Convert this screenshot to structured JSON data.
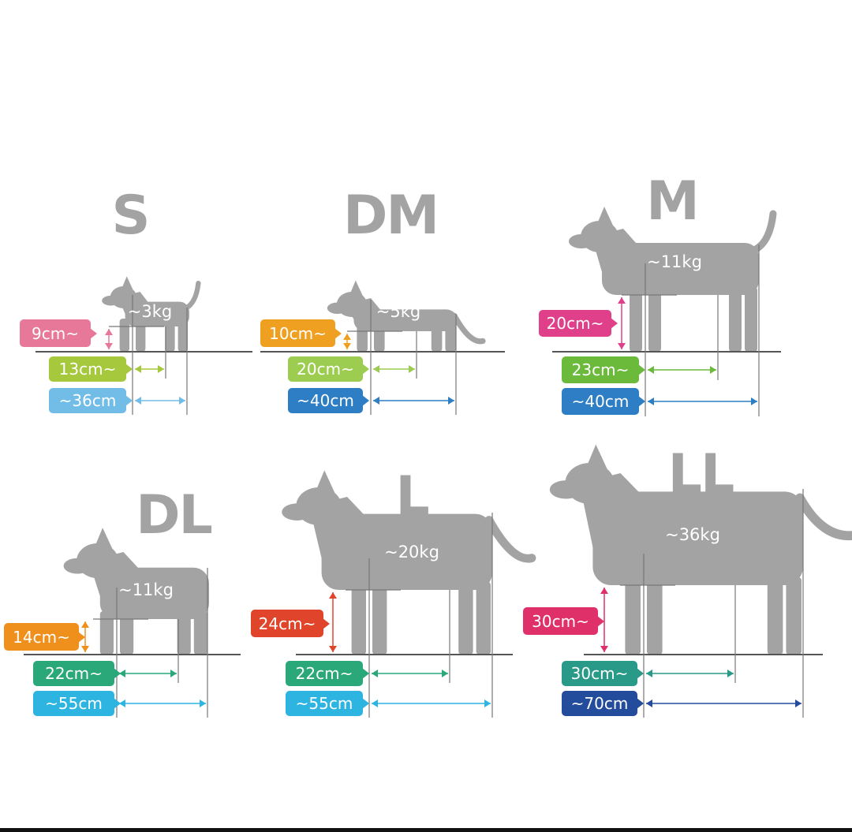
{
  "panels": [
    {
      "size": "S",
      "weight": "~3kg",
      "height": "9cm~",
      "chest": "13cm~",
      "length": "~36cm",
      "colors": {
        "height": "#e8789a",
        "chest": "#a6c83c",
        "length": "#72bde8"
      }
    },
    {
      "size": "DM",
      "weight": "~5kg",
      "height": "10cm~",
      "chest": "20cm~",
      "length": "~40cm",
      "colors": {
        "height": "#f0a020",
        "chest": "#9ccc50",
        "length": "#2d7ec4"
      }
    },
    {
      "size": "M",
      "weight": "~11kg",
      "height": "20cm~",
      "chest": "23cm~",
      "length": "~40cm",
      "colors": {
        "height": "#e0408a",
        "chest": "#6cba3c",
        "length": "#2d7ec4"
      }
    },
    {
      "size": "DL",
      "weight": "~11kg",
      "height": "14cm~",
      "chest": "22cm~",
      "length": "~55cm",
      "colors": {
        "height": "#f0901c",
        "chest": "#2aa87a",
        "length": "#2eb4e0"
      }
    },
    {
      "size": "L",
      "weight": "~20kg",
      "height": "24cm~",
      "chest": "22cm~",
      "length": "~55cm",
      "colors": {
        "height": "#e0442a",
        "chest": "#2aa87a",
        "length": "#2eb4e0"
      }
    },
    {
      "size": "LL",
      "weight": "~36kg",
      "height": "30cm~",
      "chest": "30cm~",
      "length": "~70cm",
      "colors": {
        "height": "#e0306a",
        "chest": "#2a9a88",
        "length": "#244c9c"
      }
    }
  ],
  "silhouette_color": "#a3a3a3"
}
